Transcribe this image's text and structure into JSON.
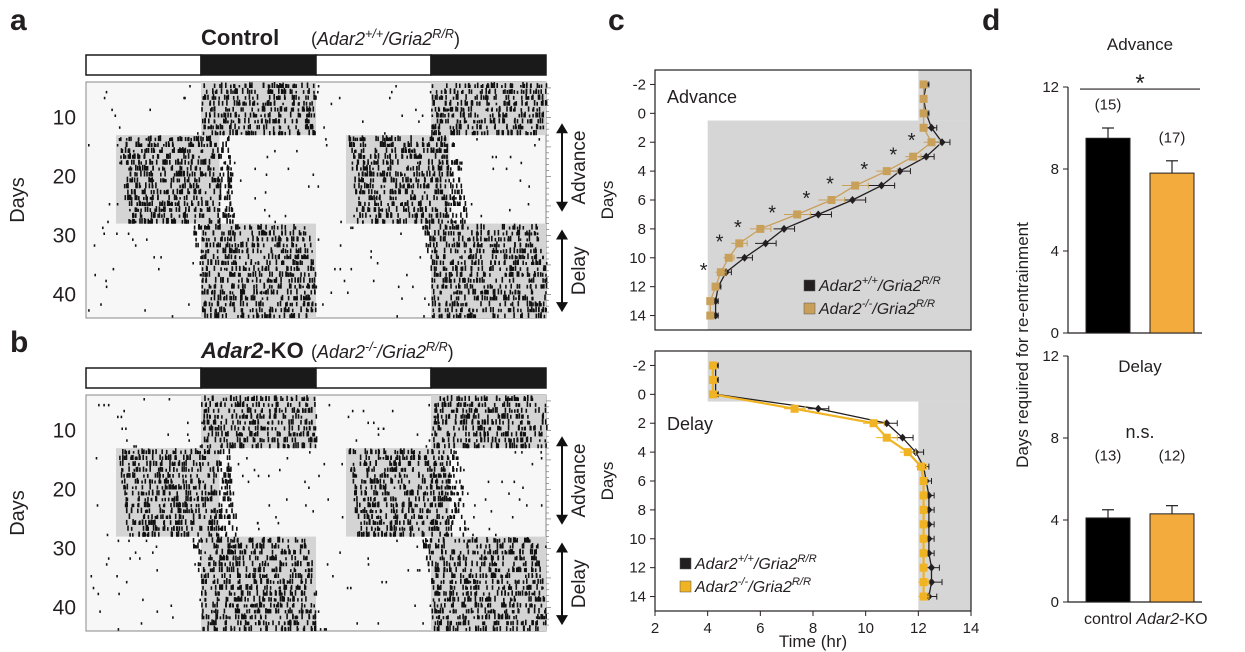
{
  "figure": {
    "panels": [
      "a",
      "b",
      "c",
      "d"
    ],
    "panel_a": {
      "title_bold": "Control",
      "title_geno": "(Adar2+/+/Gria2R/R)",
      "days_ticks": [
        "10",
        "20",
        "30",
        "40"
      ],
      "ylabel": "Days",
      "advance_label": "Advance",
      "delay_label": "Delay"
    },
    "panel_b": {
      "title_bold": "Adar2-KO",
      "title_geno": "(Adar2-/-/Gria2R/R)",
      "days_ticks": [
        "10",
        "20",
        "30",
        "40"
      ],
      "ylabel": "Days",
      "advance_label": "Advance",
      "delay_label": "Delay"
    },
    "panel_c": {
      "top_label": "Advance",
      "bottom_label": "Delay",
      "ylabel": "Days",
      "xlabel": "Time (hr)",
      "legend": [
        "Adar2+/+/Gria2R/R",
        "Adar2-/-/Gria2R/R"
      ],
      "colors": {
        "control": "#231f20",
        "ko_advance": "#c9a05a",
        "ko_delay": "#f0b323",
        "shade": "#d6d6d6"
      }
    },
    "panel_d": {
      "top_label": "Advance",
      "bottom_label": "Delay",
      "ylabel": "Days required for re-entrainment",
      "categories": [
        "control",
        "Adar2-KO"
      ],
      "sig_top": "*",
      "sig_bottom": "n.s.",
      "colors": {
        "control": "#000000",
        "ko": "#f2ab3c"
      }
    }
  },
  "chart_data": [
    {
      "type": "line",
      "panel": "c-advance",
      "title": "Advance",
      "xlabel": "Time (hr)",
      "ylabel": "Days",
      "xlim": [
        2,
        14
      ],
      "ylim": [
        -3,
        15
      ],
      "y_inverted": true,
      "xticks": [
        2,
        4,
        6,
        8,
        10,
        12,
        14
      ],
      "yticks": [
        -2,
        0,
        2,
        4,
        6,
        8,
        10,
        12,
        14
      ],
      "x_marks": [
        -2,
        -1,
        0,
        1,
        2,
        3,
        4,
        5,
        6,
        7,
        8,
        9,
        10,
        11,
        12,
        13,
        14
      ],
      "series": [
        {
          "name": "Adar2+/+/Gria2R/R",
          "x": [
            12.3,
            12.2,
            12.3,
            12.5,
            12.9,
            12.3,
            11.3,
            10.6,
            9.5,
            8.2,
            6.9,
            6.2,
            5.4,
            4.7,
            4.4,
            4.3,
            4.3
          ],
          "err": [
            0.1,
            0.1,
            0.1,
            0.2,
            0.3,
            0.3,
            0.4,
            0.5,
            0.5,
            0.5,
            0.4,
            0.4,
            0.3,
            0.2,
            0.1,
            0.1,
            0.1
          ]
        },
        {
          "name": "Adar2-/-/Gria2R/R",
          "x": [
            12.2,
            12.2,
            12.2,
            12.2,
            12.5,
            11.8,
            10.8,
            9.6,
            8.7,
            7.4,
            6.0,
            5.2,
            4.8,
            4.5,
            4.3,
            4.1,
            4.1
          ],
          "err": [
            0.1,
            0.1,
            0.1,
            0.1,
            0.3,
            0.3,
            0.4,
            0.5,
            0.5,
            0.5,
            0.4,
            0.3,
            0.2,
            0.2,
            0.1,
            0.1,
            0.1
          ]
        }
      ],
      "significance_days": [
        2,
        3,
        4,
        5,
        6,
        7,
        8,
        9,
        11
      ]
    },
    {
      "type": "line",
      "panel": "c-delay",
      "title": "Delay",
      "xlabel": "Time (hr)",
      "ylabel": "Days",
      "xlim": [
        2,
        14
      ],
      "ylim": [
        -3,
        15
      ],
      "y_inverted": true,
      "xticks": [
        2,
        4,
        6,
        8,
        10,
        12,
        14
      ],
      "yticks": [
        -2,
        0,
        2,
        4,
        6,
        8,
        10,
        12,
        14
      ],
      "x_marks": [
        -2,
        -1,
        0,
        1,
        2,
        3,
        4,
        5,
        6,
        7,
        8,
        9,
        10,
        11,
        12,
        13,
        14
      ],
      "series": [
        {
          "name": "Adar2+/+/Gria2R/R",
          "x": [
            4.3,
            4.3,
            4.3,
            8.2,
            10.8,
            11.4,
            11.9,
            12.2,
            12.3,
            12.4,
            12.4,
            12.4,
            12.4,
            12.4,
            12.5,
            12.5,
            12.4
          ],
          "err": [
            0.1,
            0.1,
            0.1,
            0.4,
            0.4,
            0.4,
            0.3,
            0.2,
            0.2,
            0.2,
            0.2,
            0.2,
            0.2,
            0.2,
            0.3,
            0.4,
            0.3
          ]
        },
        {
          "name": "Adar2-/-/Gria2R/R",
          "x": [
            4.2,
            4.2,
            4.2,
            7.3,
            10.3,
            10.8,
            11.6,
            12.1,
            12.2,
            12.2,
            12.2,
            12.2,
            12.2,
            12.2,
            12.2,
            12.2,
            12.2
          ],
          "err": [
            0.1,
            0.1,
            0.1,
            0.4,
            0.4,
            0.4,
            0.3,
            0.2,
            0.1,
            0.1,
            0.1,
            0.1,
            0.1,
            0.1,
            0.1,
            0.2,
            0.2
          ]
        }
      ]
    },
    {
      "type": "bar",
      "panel": "d-advance",
      "title": "Advance",
      "ylabel": "Days required for re-entrainment",
      "categories": [
        "control",
        "Adar2-KO"
      ],
      "values": [
        9.5,
        7.8
      ],
      "err": [
        0.5,
        0.6
      ],
      "n_labels": [
        "(15)",
        "(17)"
      ],
      "ylim": [
        0,
        12
      ],
      "yticks": [
        0,
        4,
        8,
        12
      ],
      "significance": "*"
    },
    {
      "type": "bar",
      "panel": "d-delay",
      "title": "Delay",
      "ylabel": "Days required for re-entrainment",
      "categories": [
        "control",
        "Adar2-KO"
      ],
      "values": [
        4.1,
        4.3
      ],
      "err": [
        0.4,
        0.4
      ],
      "n_labels": [
        "(13)",
        "(12)"
      ],
      "ylim": [
        0,
        12
      ],
      "yticks": [
        0,
        4,
        8,
        12
      ],
      "significance": "n.s."
    }
  ]
}
